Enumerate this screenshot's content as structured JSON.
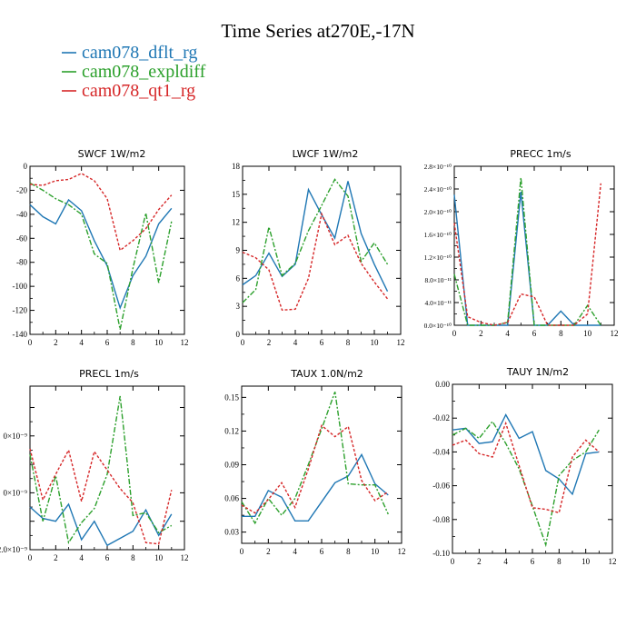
{
  "figure": {
    "title": "Time Series at270E,-17N"
  },
  "legend": [
    {
      "label": "cam078_dflt_rg",
      "color": "#1f77b4",
      "dash": ""
    },
    {
      "label": "cam078_expldiff",
      "color": "#2ca02c",
      "dash": "6,2,2,2"
    },
    {
      "label": "cam078_qt1_rg",
      "color": "#d62728",
      "dash": "3,2"
    }
  ],
  "chart_data": [
    {
      "type": "line",
      "title": "SWCF   1W/m2",
      "xlim": [
        0,
        12
      ],
      "ylim": [
        -140,
        0
      ],
      "xticks": [
        0,
        2,
        4,
        6,
        8,
        10,
        12
      ],
      "xticklabels": [
        "0",
        "2",
        "4",
        "6",
        "8",
        "10",
        "12"
      ],
      "yticks": [
        -140,
        -120,
        -100,
        -80,
        -60,
        -40,
        -20,
        0
      ],
      "yticklabels": [
        "-140",
        "-120",
        "-100",
        "-80",
        "-60",
        "-40",
        "-20",
        "0"
      ],
      "x": [
        0,
        1,
        2,
        3,
        4,
        5,
        6,
        7,
        8,
        9,
        10,
        11
      ],
      "series": [
        {
          "name": "cam078_dflt_rg",
          "values": [
            -32,
            -42,
            -48,
            -28,
            -37,
            -62,
            -83,
            -118,
            -91,
            -75,
            -48,
            -35
          ]
        },
        {
          "name": "cam078_expldiff",
          "values": [
            -14,
            -20,
            -27,
            -32,
            -40,
            -73,
            -81,
            -136,
            -85,
            -39,
            -97,
            -46
          ]
        },
        {
          "name": "cam078_qt1_rg",
          "values": [
            -15,
            -16,
            -12,
            -11,
            -6,
            -12,
            -27,
            -70,
            -62,
            -52,
            -36,
            -24
          ]
        }
      ]
    },
    {
      "type": "line",
      "title": "LWCF   1W/m2",
      "xlim": [
        0,
        12
      ],
      "ylim": [
        0,
        18
      ],
      "xticks": [
        0,
        2,
        4,
        6,
        8,
        10,
        12
      ],
      "xticklabels": [
        "0",
        "2",
        "4",
        "6",
        "8",
        "10",
        "12"
      ],
      "yticks": [
        0,
        3,
        6,
        9,
        12,
        15,
        18
      ],
      "yticklabels": [
        "0",
        "3",
        "6",
        "9",
        "12",
        "15",
        "18"
      ],
      "x": [
        0,
        1,
        2,
        3,
        4,
        5,
        6,
        7,
        8,
        9,
        10,
        11
      ],
      "series": [
        {
          "name": "cam078_dflt_rg",
          "values": [
            5.3,
            6.3,
            8.7,
            6.2,
            7.5,
            15.5,
            12.8,
            10.3,
            16.4,
            10.8,
            7.5,
            4.6
          ]
        },
        {
          "name": "cam078_expldiff",
          "values": [
            3.4,
            4.8,
            11.5,
            6.3,
            7.6,
            11.1,
            13.8,
            16.6,
            14.8,
            7.8,
            9.8,
            7.5
          ]
        },
        {
          "name": "cam078_qt1_rg",
          "values": [
            8.8,
            8.2,
            6.9,
            2.6,
            2.7,
            6.0,
            12.9,
            9.6,
            10.6,
            7.6,
            5.6,
            3.8
          ]
        }
      ]
    },
    {
      "type": "line",
      "title": "PRECC   1m/s",
      "xlim": [
        0,
        12
      ],
      "ylim": [
        0,
        2.8e-10
      ],
      "xticks": [
        0,
        2,
        4,
        6,
        8,
        10,
        12
      ],
      "xticklabels": [
        "0",
        "2",
        "4",
        "6",
        "8",
        "10",
        "12"
      ],
      "yticks": [
        0,
        4e-11,
        8e-11,
        1.2e-10,
        1.6e-10,
        2e-10,
        2.4e-10,
        2.8e-10
      ],
      "yticklabels": [
        "0.0×10⁻¹⁰",
        "4.0×10⁻¹¹",
        "8.0×10⁻¹¹",
        "1.2×10⁻¹⁰",
        "1.6×10⁻¹⁰",
        "2.0×10⁻¹⁰",
        "2.4×10⁻¹⁰",
        "2.8×10⁻¹⁰"
      ],
      "x": [
        0,
        1,
        2,
        3,
        4,
        5,
        6,
        7,
        8,
        9,
        10,
        11
      ],
      "series": [
        {
          "name": "cam078_dflt_rg",
          "values": [
            2.3e-10,
            0,
            0,
            0,
            0,
            2.35e-10,
            0,
            0,
            2.5e-11,
            0,
            0,
            0
          ]
        },
        {
          "name": "cam078_expldiff",
          "values": [
            9e-11,
            0,
            0,
            0,
            5e-12,
            2.6e-10,
            0,
            0,
            0,
            0,
            3.5e-11,
            0
          ]
        },
        {
          "name": "cam078_qt1_rg",
          "values": [
            1.8e-10,
            1.5e-11,
            5e-12,
            0,
            5e-12,
            5.5e-11,
            5e-11,
            0,
            0,
            0,
            2e-11,
            2.5e-10
          ]
        }
      ]
    },
    {
      "type": "line",
      "title": "PRECL   1m/s",
      "xlim": [
        0,
        12
      ],
      "ylim": [
        -2e-09,
        9.5e-09
      ],
      "xticks": [
        0,
        2,
        4,
        6,
        8,
        10,
        12
      ],
      "xticklabels": [
        "0",
        "2",
        "4",
        "6",
        "8",
        "10",
        "12"
      ],
      "yticks": [
        -2e-09,
        0,
        2e-09,
        4e-09,
        6e-09,
        8e-09
      ],
      "yticklabels": [
        "2.0×10⁻⁹",
        "",
        "0×10⁻⁹",
        "",
        "0×10⁻⁹",
        ""
      ],
      "x": [
        0,
        1,
        2,
        3,
        4,
        5,
        6,
        7,
        8,
        9,
        10,
        11
      ],
      "series": [
        {
          "name": "cam078_dflt_rg",
          "values": [
            1e-09,
            2e-10,
            0,
            1.2e-09,
            -1.3e-09,
            0,
            -1.7e-09,
            -1.2e-09,
            -7e-10,
            8e-10,
            -1e-09,
            5e-10
          ]
        },
        {
          "name": "cam078_expldiff",
          "values": [
            4.7e-09,
            0,
            3.2e-09,
            -1.5e-09,
            -1e-10,
            9e-10,
            3.3e-09,
            8.8e-09,
            4e-10,
            6e-10,
            -8e-10,
            -3e-10
          ]
        },
        {
          "name": "cam078_qt1_rg",
          "values": [
            5.1e-09,
            1.5e-09,
            3.3e-09,
            5e-09,
            1.4e-09,
            4.9e-09,
            3.6e-09,
            2.3e-09,
            1.3e-09,
            -1.5e-09,
            -1.6e-09,
            2.2e-09
          ]
        }
      ]
    },
    {
      "type": "line",
      "title": "TAUX   1.0N/m2",
      "xlim": [
        0,
        12
      ],
      "ylim": [
        0.02,
        0.16
      ],
      "xticks": [
        0,
        2,
        4,
        6,
        8,
        10,
        12
      ],
      "xticklabels": [
        "0",
        "2",
        "4",
        "6",
        "8",
        "10",
        "12"
      ],
      "yticks": [
        0.03,
        0.06,
        0.09,
        0.12,
        0.15
      ],
      "yticklabels": [
        "0.03",
        "0.06",
        "0.09",
        "0.12",
        "0.15"
      ],
      "x": [
        0,
        1,
        2,
        3,
        4,
        5,
        6,
        7,
        8,
        9,
        10,
        11
      ],
      "series": [
        {
          "name": "cam078_dflt_rg",
          "values": [
            0.044,
            0.044,
            0.067,
            0.061,
            0.04,
            0.04,
            0.057,
            0.074,
            0.08,
            0.099,
            0.073,
            0.063
          ]
        },
        {
          "name": "cam078_expldiff",
          "values": [
            0.057,
            0.038,
            0.06,
            0.045,
            0.06,
            0.09,
            0.122,
            0.155,
            0.073,
            0.072,
            0.072,
            0.046
          ]
        },
        {
          "name": "cam078_qt1_rg",
          "values": [
            0.054,
            0.047,
            0.059,
            0.074,
            0.052,
            0.086,
            0.125,
            0.115,
            0.124,
            0.076,
            0.058,
            0.066
          ]
        }
      ]
    },
    {
      "type": "line",
      "title": "TAUY   1N/m2",
      "xlim": [
        0,
        12
      ],
      "ylim": [
        -0.1,
        0
      ],
      "xticks": [
        0,
        2,
        4,
        6,
        8,
        10,
        12
      ],
      "xticklabels": [
        "0",
        "2",
        "4",
        "6",
        "8",
        "10",
        "12"
      ],
      "yticks": [
        -0.1,
        -0.08,
        -0.06,
        -0.04,
        -0.02,
        0
      ],
      "yticklabels": [
        "-0.10",
        "-0.08",
        "-0.06",
        "-0.04",
        "-0.02",
        "0.00"
      ],
      "x": [
        0,
        1,
        2,
        3,
        4,
        5,
        6,
        7,
        8,
        9,
        10,
        11
      ],
      "series": [
        {
          "name": "cam078_dflt_rg",
          "values": [
            -0.027,
            -0.026,
            -0.035,
            -0.034,
            -0.018,
            -0.032,
            -0.028,
            -0.051,
            -0.056,
            -0.065,
            -0.041,
            -0.04
          ]
        },
        {
          "name": "cam078_expldiff",
          "values": [
            -0.03,
            -0.026,
            -0.032,
            -0.022,
            -0.035,
            -0.05,
            -0.072,
            -0.095,
            -0.054,
            -0.045,
            -0.04,
            -0.027
          ]
        },
        {
          "name": "cam078_qt1_rg",
          "values": [
            -0.036,
            -0.033,
            -0.041,
            -0.043,
            -0.023,
            -0.048,
            -0.073,
            -0.074,
            -0.076,
            -0.043,
            -0.033,
            -0.04
          ]
        }
      ]
    }
  ]
}
